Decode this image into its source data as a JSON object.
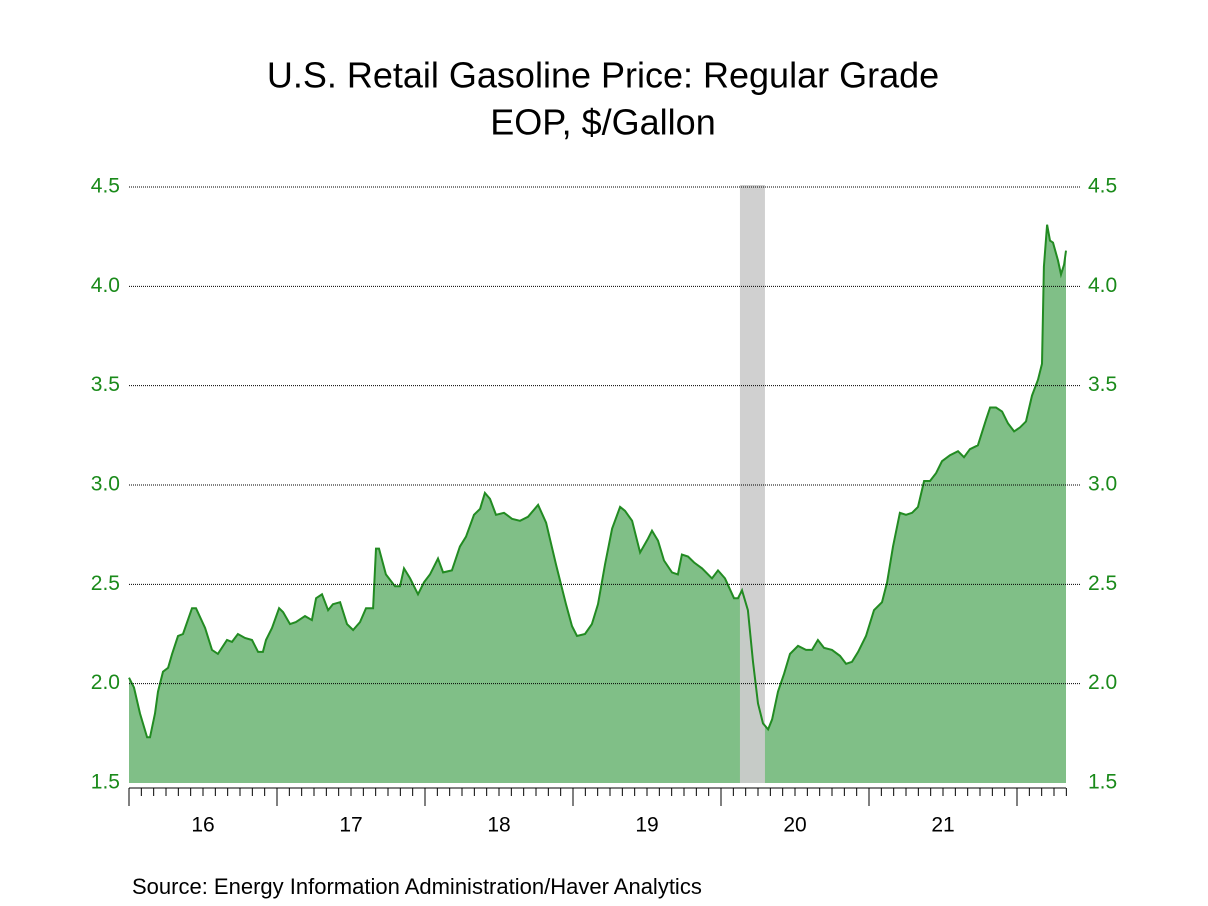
{
  "chart_data": {
    "type": "area",
    "title": "U.S. Retail Gasoline Price: Regular Grade",
    "subtitle": "EOP, $/Gallon",
    "source": "Source:  Energy Information Administration/Haver Analytics",
    "x": [
      2016,
      2016.034,
      2016.074,
      2016.122,
      2016.142,
      2016.176,
      2016.196,
      2016.23,
      2016.264,
      2016.291,
      2016.331,
      2016.365,
      2016.426,
      2016.453,
      2016.514,
      2016.561,
      2016.601,
      2016.662,
      2016.696,
      2016.736,
      2016.784,
      2016.831,
      2016.872,
      2016.905,
      2016.926,
      2016.966,
      2017.014,
      2017.041,
      2017.088,
      2017.128,
      2017.189,
      2017.236,
      2017.264,
      2017.304,
      2017.345,
      2017.378,
      2017.426,
      2017.473,
      2017.514,
      2017.561,
      2017.601,
      2017.649,
      2017.669,
      2017.689,
      2017.736,
      2017.797,
      2017.831,
      2017.858,
      2017.899,
      2017.953,
      2017.993,
      2018.034,
      2018.088,
      2018.122,
      2018.182,
      2018.236,
      2018.277,
      2018.331,
      2018.372,
      2018.405,
      2018.439,
      2018.48,
      2018.534,
      2018.588,
      2018.642,
      2018.696,
      2018.764,
      2018.818,
      2018.885,
      2018.953,
      2018.993,
      2019.027,
      2019.081,
      2019.128,
      2019.169,
      2019.216,
      2019.264,
      2019.318,
      2019.351,
      2019.399,
      2019.453,
      2019.507,
      2019.534,
      2019.574,
      2019.615,
      2019.669,
      2019.709,
      2019.736,
      2019.777,
      2019.818,
      2019.872,
      2019.939,
      2019.98,
      2020.027,
      2020.088,
      2020.115,
      2020.142,
      2020.182,
      2020.216,
      2020.25,
      2020.284,
      2020.318,
      2020.345,
      2020.385,
      2020.426,
      2020.466,
      2020.52,
      2020.574,
      2020.615,
      2020.655,
      2020.696,
      2020.75,
      2020.804,
      2020.845,
      2020.885,
      2020.926,
      2020.98,
      2021.034,
      2021.088,
      2021.122,
      2021.162,
      2021.209,
      2021.25,
      2021.291,
      2021.331,
      2021.372,
      2021.412,
      2021.453,
      2021.493,
      2021.547,
      2021.601,
      2021.642,
      2021.682,
      2021.736,
      2021.791,
      2021.818,
      2021.858,
      2021.899,
      2021.939,
      2021.98,
      2022.02,
      2022.061,
      2022.101,
      2022.142,
      2022.169,
      2022.182,
      2022.203,
      2022.223,
      2022.243,
      2022.277,
      2022.297,
      2022.318,
      2022.331
    ],
    "values": [
      2.03,
      1.98,
      1.85,
      1.73,
      1.73,
      1.85,
      1.96,
      2.06,
      2.08,
      2.15,
      2.24,
      2.25,
      2.38,
      2.38,
      2.28,
      2.17,
      2.15,
      2.22,
      2.21,
      2.25,
      2.23,
      2.22,
      2.16,
      2.16,
      2.22,
      2.28,
      2.38,
      2.36,
      2.3,
      2.31,
      2.34,
      2.32,
      2.43,
      2.45,
      2.37,
      2.4,
      2.41,
      2.3,
      2.27,
      2.31,
      2.38,
      2.38,
      2.68,
      2.68,
      2.55,
      2.49,
      2.49,
      2.58,
      2.53,
      2.45,
      2.51,
      2.55,
      2.63,
      2.56,
      2.57,
      2.69,
      2.74,
      2.85,
      2.88,
      2.96,
      2.93,
      2.85,
      2.86,
      2.83,
      2.82,
      2.84,
      2.9,
      2.81,
      2.6,
      2.4,
      2.29,
      2.24,
      2.25,
      2.3,
      2.4,
      2.6,
      2.78,
      2.89,
      2.87,
      2.82,
      2.66,
      2.73,
      2.77,
      2.72,
      2.62,
      2.56,
      2.55,
      2.65,
      2.64,
      2.61,
      2.58,
      2.53,
      2.57,
      2.53,
      2.43,
      2.43,
      2.47,
      2.37,
      2.11,
      1.9,
      1.8,
      1.77,
      1.82,
      1.96,
      2.05,
      2.15,
      2.19,
      2.17,
      2.17,
      2.22,
      2.18,
      2.17,
      2.14,
      2.1,
      2.11,
      2.16,
      2.24,
      2.37,
      2.41,
      2.51,
      2.69,
      2.86,
      2.85,
      2.86,
      2.89,
      3.02,
      3.02,
      3.06,
      3.12,
      3.15,
      3.17,
      3.14,
      3.18,
      3.2,
      3.33,
      3.39,
      3.39,
      3.37,
      3.31,
      3.27,
      3.29,
      3.32,
      3.45,
      3.53,
      3.61,
      4.1,
      4.31,
      4.23,
      4.22,
      4.13,
      4.06,
      4.11,
      4.18
    ],
    "color": "#80bf87",
    "line_color": "#228b22",
    "shading": [
      2020.128,
      2020.297
    ],
    "shading_color": "#cccccc",
    "xlim": [
      2016,
      2022.331
    ],
    "xticks": [
      {
        "value": 2016,
        "label": "16"
      },
      {
        "value": 2017,
        "label": "17"
      },
      {
        "value": 2018,
        "label": "18"
      },
      {
        "value": 2019,
        "label": "19"
      },
      {
        "value": 2020,
        "label": "20"
      },
      {
        "value": 2021,
        "label": "21"
      },
      {
        "value": 2022,
        "label": ""
      }
    ],
    "ylim": [
      1.5,
      4.5
    ],
    "yticks": [
      {
        "value": 1.5,
        "label": "1.5"
      },
      {
        "value": 2,
        "label": "2.0"
      },
      {
        "value": 2.5,
        "label": "2.5"
      },
      {
        "value": 3,
        "label": "3.0"
      },
      {
        "value": 3.5,
        "label": "3.5"
      },
      {
        "value": 4,
        "label": "4.0"
      },
      {
        "value": 4.5,
        "label": "4.5"
      }
    ],
    "grid": true
  }
}
